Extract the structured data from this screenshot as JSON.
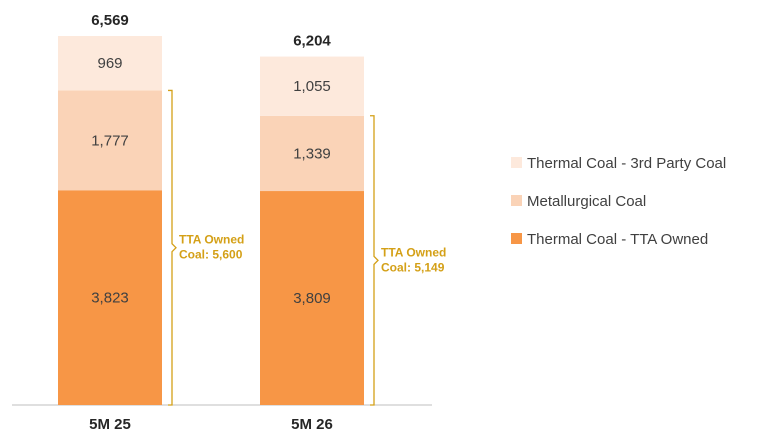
{
  "chart_data": {
    "type": "bar",
    "stacked": true,
    "categories": [
      "5M 25",
      "5M 26"
    ],
    "series": [
      {
        "name": "Thermal Coal - TTA Owned",
        "values": [
          3823,
          3809
        ],
        "value_labels": [
          "3,823",
          "3,809"
        ],
        "color": "#F79646"
      },
      {
        "name": "Metallurgical Coal",
        "values": [
          1777,
          1339
        ],
        "value_labels": [
          "1,777",
          "1,339"
        ],
        "color": "#FAD3B7"
      },
      {
        "name": "Thermal Coal - 3rd Party Coal",
        "values": [
          969,
          1055
        ],
        "value_labels": [
          "969",
          "1,055"
        ],
        "color": "#FDE9DC"
      }
    ],
    "totals": [
      6569,
      6204
    ],
    "total_labels": [
      "6,569",
      "6,204"
    ],
    "legend_order": [
      "Thermal Coal - 3rd Party Coal",
      "Metallurgical Coal",
      "Thermal Coal - TTA Owned"
    ],
    "legend_position": "right",
    "annotations": [
      {
        "line1": "TTA Owned",
        "line2": "Coal: 5,600",
        "value": 5600
      },
      {
        "line1": "TTA Owned",
        "line2": "Coal: 5,149",
        "value": 5149
      }
    ],
    "annotation_color": "#D4A017",
    "ylim": [
      0,
      6900
    ],
    "grid": false
  }
}
